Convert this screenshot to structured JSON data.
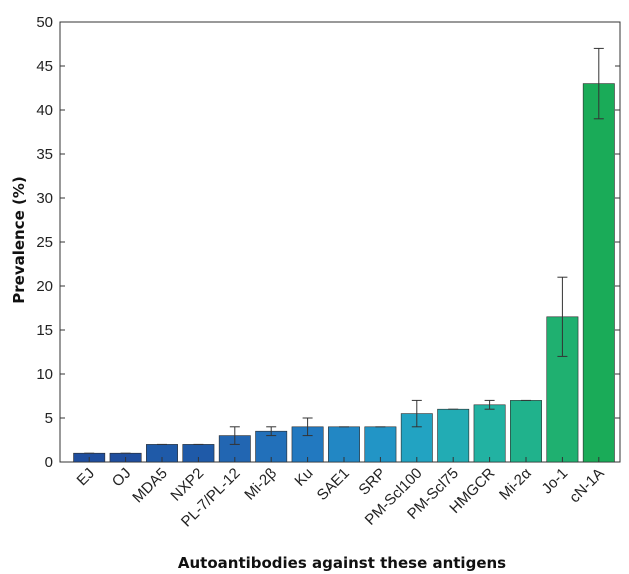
{
  "chart_data": {
    "type": "bar",
    "title": "",
    "xlabel": "Autoantibodies against these antigens",
    "ylabel": "Prevalence (%)",
    "ylim": [
      0,
      50
    ],
    "yticks": [
      0,
      5,
      10,
      15,
      20,
      25,
      30,
      35,
      40,
      45,
      50
    ],
    "grid": false,
    "legend": "none",
    "categories": [
      "EJ",
      "OJ",
      "MDA5",
      "NXP2",
      "PL-7/PL-12",
      "Mi-2β",
      "Ku",
      "SAE1",
      "SRP",
      "PM-Scl100",
      "PM-Scl75",
      "HMGCR",
      "Mi-2α",
      "Jo-1",
      "cN-1A"
    ],
    "values": [
      1,
      1,
      2,
      2,
      3,
      3.5,
      4,
      4,
      4,
      5.5,
      6,
      6.5,
      7,
      16.5,
      43
    ],
    "error_low": [
      1,
      1,
      2,
      2,
      2,
      3,
      3,
      4,
      4,
      4,
      6,
      6,
      7,
      12,
      39
    ],
    "error_high": [
      1,
      1,
      2,
      2,
      4,
      4,
      5,
      4,
      4,
      7,
      6,
      7,
      7,
      21,
      47
    ],
    "colors": [
      "#1f4e9e",
      "#1f4e9e",
      "#1f5aa8",
      "#1f5aa8",
      "#2266b2",
      "#2270ba",
      "#2279c0",
      "#2287c4",
      "#2295c6",
      "#22a3c2",
      "#22acb4",
      "#22b2a2",
      "#20b28c",
      "#1fb070",
      "#1aab58"
    ]
  }
}
